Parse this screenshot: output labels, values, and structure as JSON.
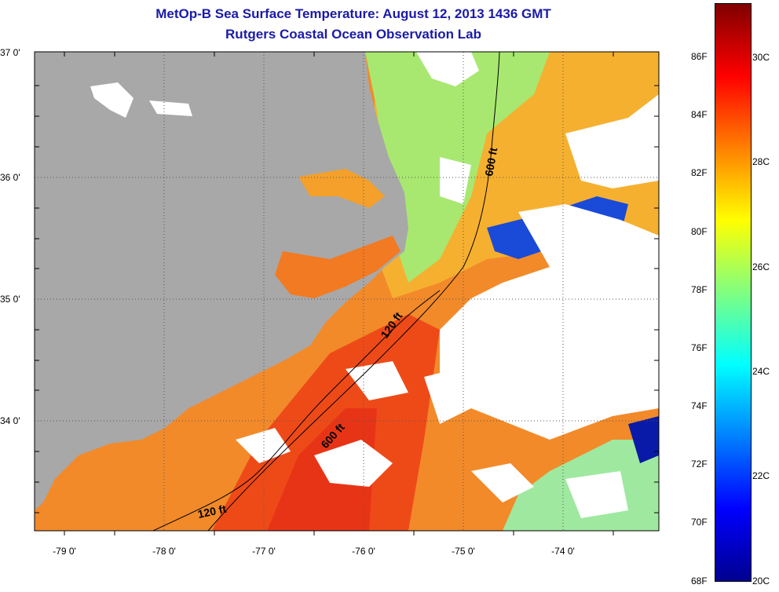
{
  "title": {
    "line1": "MetOp-B Sea Surface Temperature:  August 12, 2013 1436 GMT",
    "line2": "Rutgers Coastal Ocean Observation Lab"
  },
  "axes": {
    "lat_labels": [
      "37 0'",
      "36 0'",
      "35 0'",
      "34 0'"
    ],
    "lon_labels": [
      "-79 0'",
      "-78 0'",
      "-77 0'",
      "-76 0'",
      "-75 0'",
      "-74 0'"
    ]
  },
  "contours": {
    "labels": [
      "600 ft",
      "120 ft",
      "600 ft",
      "120 ft"
    ]
  },
  "colorbar": {
    "fahrenheit": [
      "86F",
      "84F",
      "82F",
      "80F",
      "78F",
      "76F",
      "74F",
      "72F",
      "70F",
      "68F"
    ],
    "celsius": [
      "30C",
      "28C",
      "26C",
      "24C",
      "22C",
      "20C"
    ],
    "colors": [
      "#00008f",
      "#0000ff",
      "#0080ff",
      "#00ffff",
      "#80ff80",
      "#ffff00",
      "#ff8000",
      "#ff0000",
      "#800000"
    ]
  },
  "map_colors": {
    "land": "#a8a8a8",
    "cloud": "#ffffff",
    "warm": "#f57a1c",
    "hot": "#ee3a18",
    "mid": "#f4b22a",
    "cool": "#9fe87a",
    "cold": "#1030c8"
  }
}
